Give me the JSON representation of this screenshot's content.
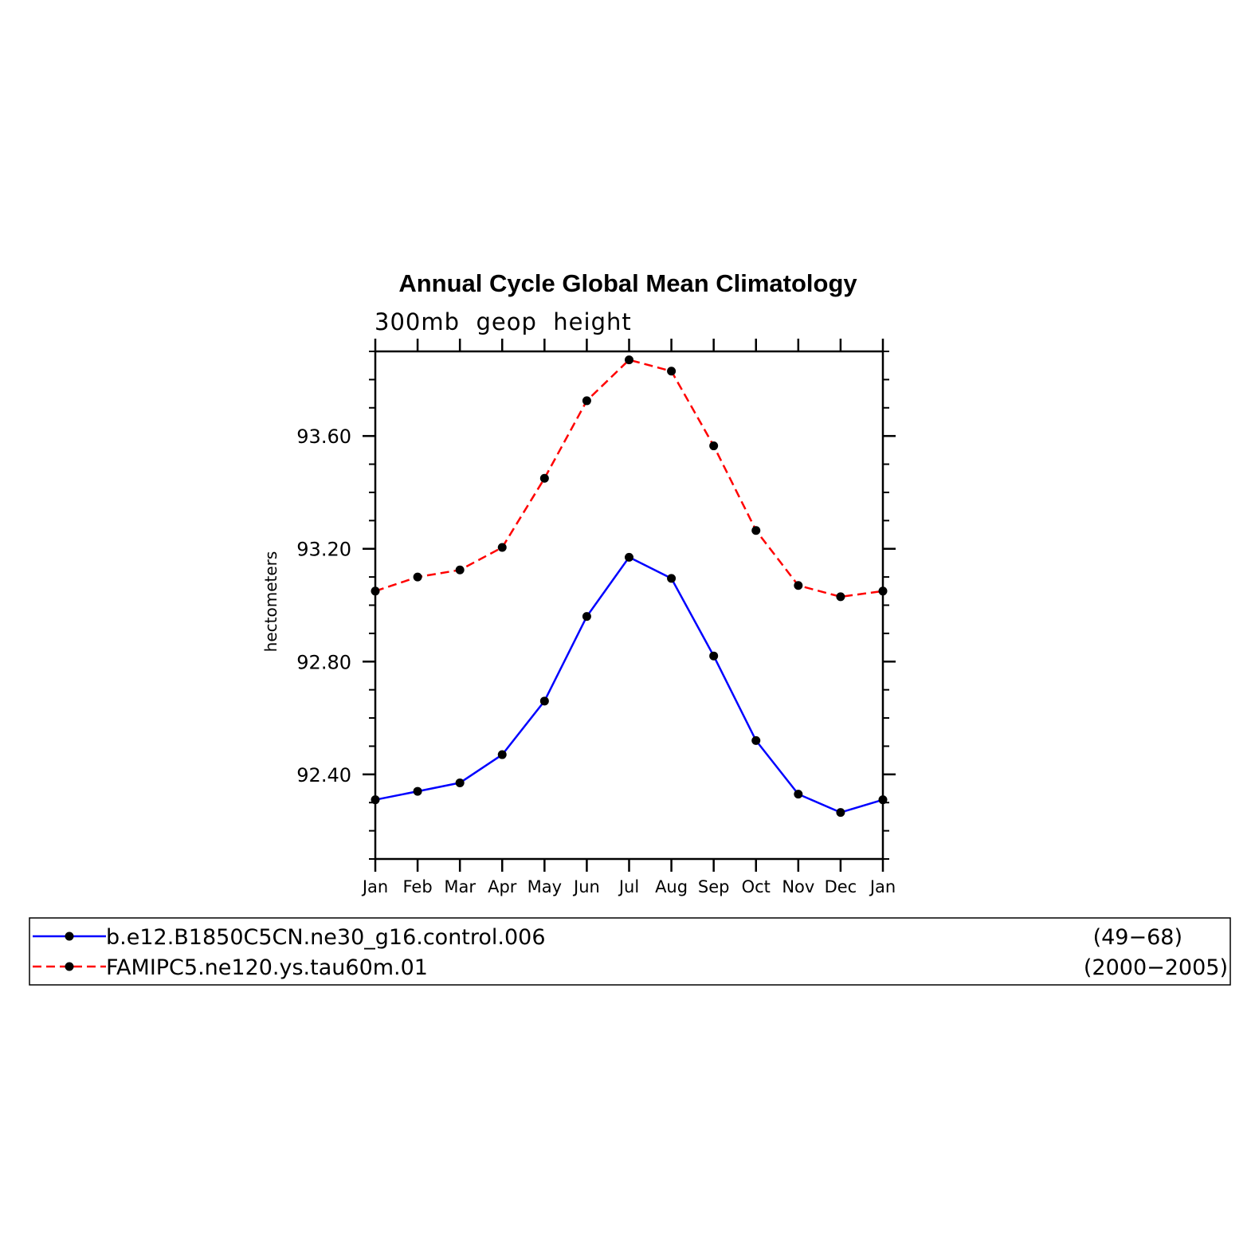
{
  "chart_data": {
    "type": "line",
    "title": "Annual Cycle Global Mean Climatology",
    "subtitle": "300mb  geop  height",
    "ylabel": "hectometers",
    "xlabel": "",
    "categories": [
      "Jan",
      "Feb",
      "Mar",
      "Apr",
      "May",
      "Jun",
      "Jul",
      "Aug",
      "Sep",
      "Oct",
      "Nov",
      "Dec",
      "Jan"
    ],
    "ylim": [
      92.1,
      93.9
    ],
    "yticks": [
      92.4,
      92.8,
      93.2,
      93.6
    ],
    "ytick_labels": [
      "92.40",
      "92.80",
      "93.20",
      "93.60"
    ],
    "grid": false,
    "legend_position": "bottom",
    "series": [
      {
        "name": "b.e12.B1850C5CN.ne30_g16.control.006",
        "years": "(49−68)",
        "color": "#0000ff",
        "style": "solid",
        "values": [
          92.31,
          92.34,
          92.37,
          92.47,
          92.66,
          92.96,
          93.17,
          93.095,
          92.82,
          92.52,
          92.33,
          92.265,
          92.31
        ]
      },
      {
        "name": "FAMIPC5.ne120.ys.tau60m.01",
        "years": "(2000−2005)",
        "color": "#ff0000",
        "style": "dashed",
        "values": [
          93.05,
          93.1,
          93.125,
          93.205,
          93.45,
          93.725,
          93.87,
          93.83,
          93.565,
          93.265,
          93.07,
          93.03,
          93.05
        ]
      }
    ]
  }
}
